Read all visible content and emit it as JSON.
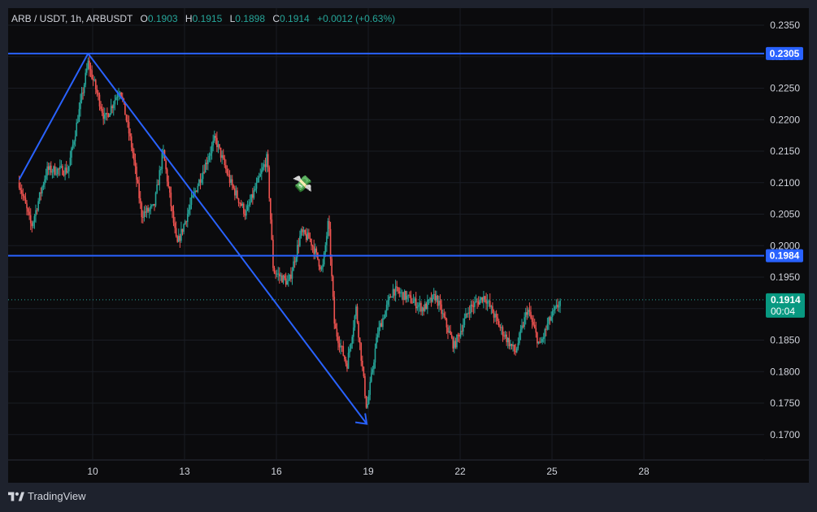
{
  "legend": {
    "symbol": "ARB / USDT, 1h, ARBUSDT",
    "open_label": "O",
    "open": "0.1903",
    "high_label": "H",
    "high": "0.1915",
    "low_label": "L",
    "low": "0.1898",
    "close_label": "C",
    "close": "0.1914",
    "change": "+0.0012 (+0.63%)"
  },
  "footer": {
    "brand": "TradingView"
  },
  "colors": {
    "up": "#26a69a",
    "down": "#ef5350",
    "line": "#2962ff",
    "bg": "#0b0b0d"
  },
  "chart_data": {
    "type": "candlestick",
    "y_ticks": [
      "0.2350",
      "0.2300",
      "0.2250",
      "0.2200",
      "0.2150",
      "0.2100",
      "0.2050",
      "0.2000",
      "0.1950",
      "0.1900",
      "0.1850",
      "0.1800",
      "0.1750",
      "0.1700"
    ],
    "x_ticks": [
      "10",
      "13",
      "16",
      "19",
      "22",
      "25",
      "28"
    ],
    "ylim": [
      0.166,
      0.236
    ],
    "price_lines": [
      {
        "label": "0.2305",
        "value": 0.2305
      },
      {
        "label": "0.1984",
        "value": 0.1984
      }
    ],
    "current_price": {
      "label": "0.1914",
      "value": 0.1914,
      "countdown": "00:04"
    },
    "trend_lines": [
      {
        "from": {
          "day": 7.6,
          "price": 0.2105
        },
        "to": {
          "day": 9.85,
          "price": 0.2305
        }
      },
      {
        "from": {
          "day": 9.85,
          "price": 0.2305
        },
        "to": {
          "day": 18.95,
          "price": 0.1717
        }
      }
    ],
    "arrowhead_end": {
      "day": 18.95,
      "price": 0.1717
    },
    "emoji": {
      "symbol": "💸",
      "day": 16.85,
      "price": 0.21
    },
    "anchors": [
      {
        "day": 7.6,
        "price": 0.21
      },
      {
        "day": 8.0,
        "price": 0.203
      },
      {
        "day": 8.5,
        "price": 0.212
      },
      {
        "day": 9.2,
        "price": 0.212
      },
      {
        "day": 9.85,
        "price": 0.229
      },
      {
        "day": 10.4,
        "price": 0.22
      },
      {
        "day": 10.9,
        "price": 0.225
      },
      {
        "day": 11.3,
        "price": 0.215
      },
      {
        "day": 11.6,
        "price": 0.205
      },
      {
        "day": 12.0,
        "price": 0.206
      },
      {
        "day": 12.3,
        "price": 0.215
      },
      {
        "day": 12.75,
        "price": 0.2
      },
      {
        "day": 13.3,
        "price": 0.208
      },
      {
        "day": 14.0,
        "price": 0.217
      },
      {
        "day": 14.5,
        "price": 0.21
      },
      {
        "day": 15.0,
        "price": 0.205
      },
      {
        "day": 15.7,
        "price": 0.214
      },
      {
        "day": 15.9,
        "price": 0.196
      },
      {
        "day": 16.4,
        "price": 0.194
      },
      {
        "day": 16.8,
        "price": 0.202
      },
      {
        "day": 17.1,
        "price": 0.201
      },
      {
        "day": 17.5,
        "price": 0.196
      },
      {
        "day": 17.7,
        "price": 0.204
      },
      {
        "day": 17.9,
        "price": 0.187
      },
      {
        "day": 18.3,
        "price": 0.181
      },
      {
        "day": 18.6,
        "price": 0.19
      },
      {
        "day": 18.95,
        "price": 0.174
      },
      {
        "day": 19.3,
        "price": 0.186
      },
      {
        "day": 19.8,
        "price": 0.193
      },
      {
        "day": 20.2,
        "price": 0.192
      },
      {
        "day": 20.8,
        "price": 0.19
      },
      {
        "day": 21.2,
        "price": 0.192
      },
      {
        "day": 21.8,
        "price": 0.184
      },
      {
        "day": 22.3,
        "price": 0.19
      },
      {
        "day": 22.8,
        "price": 0.192
      },
      {
        "day": 23.3,
        "price": 0.187
      },
      {
        "day": 23.8,
        "price": 0.183
      },
      {
        "day": 24.2,
        "price": 0.19
      },
      {
        "day": 24.6,
        "price": 0.184
      },
      {
        "day": 24.9,
        "price": 0.188
      },
      {
        "day": 25.3,
        "price": 0.1914
      }
    ]
  }
}
